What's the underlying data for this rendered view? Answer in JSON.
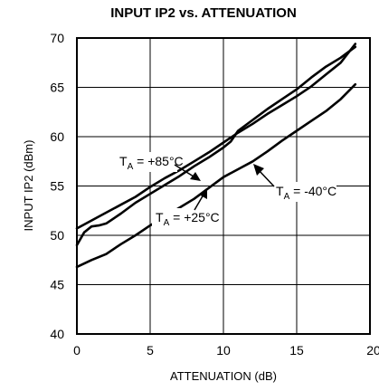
{
  "chart_data": {
    "type": "line",
    "title": "INPUT IP2 vs. ATTENUATION",
    "xlabel": "ATTENUATION (dB)",
    "ylabel": "INPUT IP2 (dBm)",
    "xlim": [
      0,
      20
    ],
    "ylim": [
      40,
      70
    ],
    "xticks": [
      "0",
      "5",
      "10",
      "15",
      "20"
    ],
    "yticks": [
      "40",
      "45",
      "50",
      "55",
      "60",
      "65",
      "70"
    ],
    "grid": true,
    "series": [
      {
        "label_prefix": "T",
        "label_sub": "A",
        "label_value": " = +85°C",
        "x": [
          0,
          1,
          2,
          3,
          4,
          5,
          6,
          7,
          8,
          9,
          10,
          11,
          12,
          13,
          14,
          15,
          16,
          17,
          18,
          19
        ],
        "y": [
          50.7,
          51.5,
          52.3,
          53.1,
          53.9,
          54.9,
          55.8,
          56.6,
          57.5,
          58.4,
          59.4,
          60.4,
          61.3,
          62.3,
          63.2,
          64.1,
          65.1,
          66.3,
          67.5,
          69.4
        ]
      },
      {
        "label_prefix": "T",
        "label_sub": "A",
        "label_value": " = +25°C",
        "x": [
          0,
          0.5,
          1,
          1.5,
          2,
          3,
          4,
          5,
          6,
          7,
          8,
          9,
          10,
          10.5,
          11,
          12,
          13,
          14,
          15,
          16,
          17,
          18,
          19
        ],
        "y": [
          49.0,
          50.3,
          50.9,
          51.0,
          51.2,
          52.2,
          53.3,
          54.2,
          55.1,
          56.0,
          57.0,
          57.9,
          58.9,
          59.5,
          60.6,
          61.7,
          62.8,
          63.8,
          64.8,
          66.0,
          67.1,
          68.0,
          69.1
        ]
      },
      {
        "label_prefix": "T",
        "label_sub": "A",
        "label_value": " = -40°C",
        "x": [
          0,
          1,
          2,
          3,
          4,
          5,
          6,
          7,
          8,
          9,
          10,
          11,
          12,
          13,
          14,
          15,
          16,
          17,
          18,
          19
        ],
        "y": [
          46.8,
          47.5,
          48.1,
          49.1,
          50.0,
          51.0,
          51.9,
          52.8,
          53.7,
          54.8,
          55.9,
          56.7,
          57.5,
          58.5,
          59.6,
          60.6,
          61.6,
          62.6,
          63.8,
          65.3
        ]
      }
    ]
  }
}
